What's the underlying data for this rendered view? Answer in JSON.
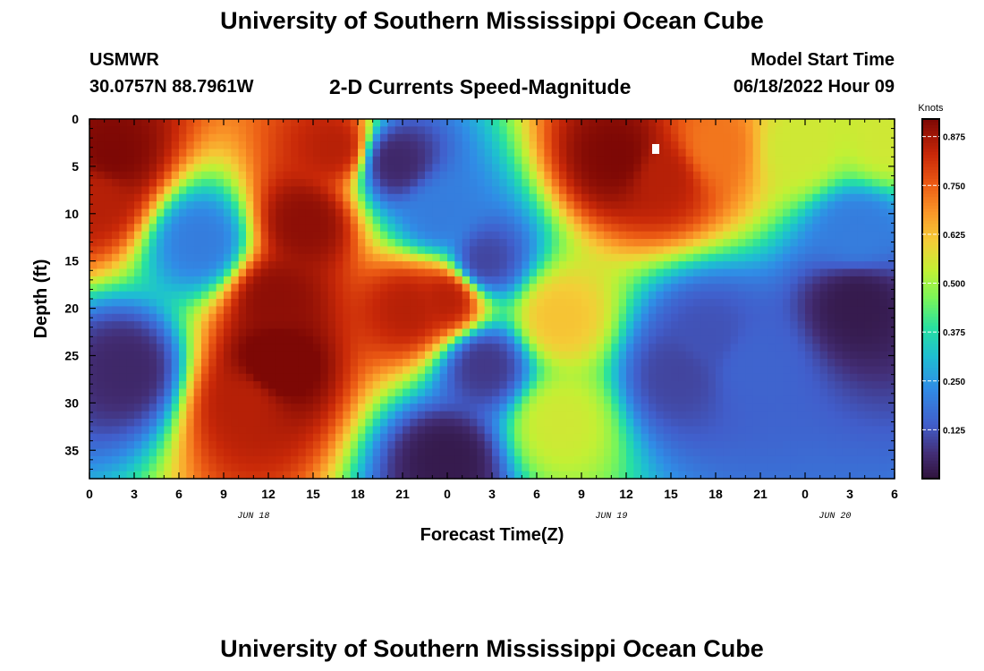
{
  "header": {
    "title": "University of Southern Mississippi Ocean Cube",
    "station": "USMWR",
    "coords": "30.0757N  88.7961W",
    "subtitle": "2-D Currents Speed-Magnitude",
    "model_label": "Model Start Time",
    "model_time": "06/18/2022 Hour 09"
  },
  "footer": {
    "title": "University of Southern Mississippi Ocean Cube"
  },
  "chart_data": {
    "type": "heatmap",
    "xlabel": "Forecast Time(Z)",
    "ylabel": "Depth (ft)",
    "x_ticks": [
      "0",
      "3",
      "6",
      "9",
      "12",
      "15",
      "18",
      "21",
      "0",
      "3",
      "6",
      "9",
      "12",
      "15",
      "18",
      "21",
      "0",
      "3",
      "6"
    ],
    "x_dates": [
      {
        "label": "JUN 18",
        "hour_index": 11
      },
      {
        "label": "JUN 19",
        "hour_index": 35
      },
      {
        "label": "JUN 20",
        "hour_index": 50
      }
    ],
    "xlim_hours": [
      0,
      54
    ],
    "y_ticks": [
      0,
      5,
      10,
      15,
      20,
      25,
      30,
      35
    ],
    "ylim": [
      0,
      38
    ],
    "colorbar": {
      "label": "Knots",
      "ticks": [
        "0.875",
        "0.750",
        "0.625",
        "0.500",
        "0.375",
        "0.250",
        "0.125"
      ],
      "tick_values": [
        0.875,
        0.75,
        0.625,
        0.5,
        0.375,
        0.25,
        0.125
      ],
      "range": [
        0,
        0.92
      ]
    },
    "features": [
      {
        "hour": 1.5,
        "depth": 4,
        "speed": 0.92
      },
      {
        "hour": 0.5,
        "depth": 8,
        "speed": 0.85
      },
      {
        "hour": 2.5,
        "depth": 26.5,
        "speed": 0.05
      },
      {
        "hour": 7.5,
        "depth": 13,
        "speed": 0.2
      },
      {
        "hour": 12.5,
        "depth": 26,
        "speed": 0.95
      },
      {
        "hour": 12.5,
        "depth": 19,
        "speed": 0.9
      },
      {
        "hour": 14.5,
        "depth": 11,
        "speed": 0.9
      },
      {
        "hour": 16.5,
        "depth": 3,
        "speed": 0.85
      },
      {
        "hour": 10.5,
        "depth": 30,
        "speed": 0.85
      },
      {
        "hour": 20.5,
        "depth": 4.5,
        "speed": 0.05
      },
      {
        "hour": 23.5,
        "depth": 10,
        "speed": 0.2
      },
      {
        "hour": 21.5,
        "depth": 20,
        "speed": 0.85
      },
      {
        "hour": 24.0,
        "depth": 19,
        "speed": 0.85
      },
      {
        "hour": 26.5,
        "depth": 15,
        "speed": 0.1
      },
      {
        "hour": 26.5,
        "depth": 26,
        "speed": 0.08
      },
      {
        "hour": 24.0,
        "depth": 36,
        "speed": 0.02
      },
      {
        "hour": 31.5,
        "depth": 21,
        "speed": 0.62
      },
      {
        "hour": 31.5,
        "depth": 32,
        "speed": 0.55
      },
      {
        "hour": 35.5,
        "depth": 4,
        "speed": 0.92
      },
      {
        "hour": 38.5,
        "depth": 6,
        "speed": 0.85
      },
      {
        "hour": 42,
        "depth": 3,
        "speed": 0.72
      },
      {
        "hour": 39.5,
        "depth": 27,
        "speed": 0.1
      },
      {
        "hour": 41.5,
        "depth": 23,
        "speed": 0.12
      },
      {
        "hour": 44.5,
        "depth": 26,
        "speed": 0.15
      },
      {
        "hour": 47.5,
        "depth": 3,
        "speed": 0.55
      },
      {
        "hour": 51.5,
        "depth": 19.5,
        "speed": 0.02
      },
      {
        "hour": 51.5,
        "depth": 12,
        "speed": 0.2
      },
      {
        "hour": 53.5,
        "depth": 2,
        "speed": 0.55
      }
    ]
  }
}
